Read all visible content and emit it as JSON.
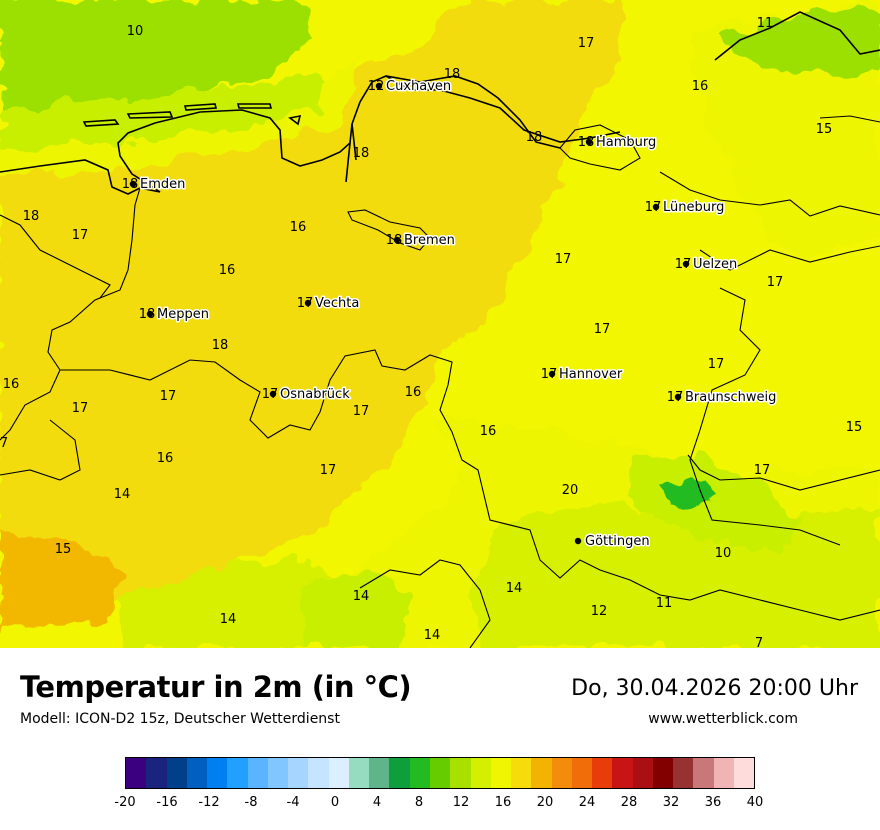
{
  "title": "Temperatur in 2m (in °C)",
  "model": "Modell: ICON-D2 15z, Deutscher Wetterdienst",
  "datetime": "Do, 30.04.2026 20:00 Uhr",
  "website": "www.wetterblick.com",
  "colors": {
    "v10": "#9be000",
    "v12": "#c8ee00",
    "v14": "#d6f000",
    "v16": "#eef500",
    "v17": "#f2f700",
    "v18": "#f2dc0a",
    "v20": "#f2b800",
    "green_dark": "#22bb22",
    "green_mid": "#7ed800"
  },
  "colorbar": {
    "colors": [
      "#3a007f",
      "#1a237e",
      "#003f8a",
      "#005fbf",
      "#0080f0",
      "#22a0ff",
      "#5ab4ff",
      "#82c6ff",
      "#a6d6ff",
      "#c4e4ff",
      "#dcefff",
      "#96dcc0",
      "#5fb48a",
      "#0e9e3c",
      "#22bb22",
      "#66cc00",
      "#a8e000",
      "#d2f000",
      "#f0f500",
      "#f5dc0a",
      "#f2b400",
      "#f28c0a",
      "#f06e0a",
      "#e83c0a",
      "#c81414",
      "#aa0f14",
      "#820000",
      "#963232",
      "#c87878",
      "#f0b4b4",
      "#ffdcdc"
    ],
    "ticks": [
      "-20",
      "-16",
      "-12",
      "-8",
      "-4",
      "0",
      "4",
      "8",
      "12",
      "16",
      "20",
      "24",
      "28",
      "32",
      "36",
      "40"
    ]
  },
  "cities": [
    {
      "name": "Cuxhaven",
      "value": "12"
    },
    {
      "name": "Hamburg",
      "value": "18"
    },
    {
      "name": "Emden",
      "value": "18"
    },
    {
      "name": "Lüneburg",
      "value": "17"
    },
    {
      "name": "Bremen",
      "value": "18"
    },
    {
      "name": "Uelzen",
      "value": "17"
    },
    {
      "name": "Vechta",
      "value": "17"
    },
    {
      "name": "Meppen",
      "value": "18"
    },
    {
      "name": "Hannover",
      "value": "17"
    },
    {
      "name": "Osnabrück",
      "value": "17"
    },
    {
      "name": "Braunschweig",
      "value": "17"
    },
    {
      "name": "Göttingen",
      "value": ""
    }
  ],
  "values": [
    "10",
    "11",
    "17",
    "18",
    "16",
    "15",
    "18",
    "18",
    "18",
    "16",
    "17",
    "17",
    "16",
    "17",
    "17",
    "18",
    "17",
    "16",
    "17",
    "17",
    "16",
    "17",
    "7",
    "16",
    "15",
    "16",
    "17",
    "17",
    "20",
    "14",
    "15",
    "10",
    "14",
    "14",
    "12",
    "11",
    "14",
    "14",
    "7"
  ]
}
